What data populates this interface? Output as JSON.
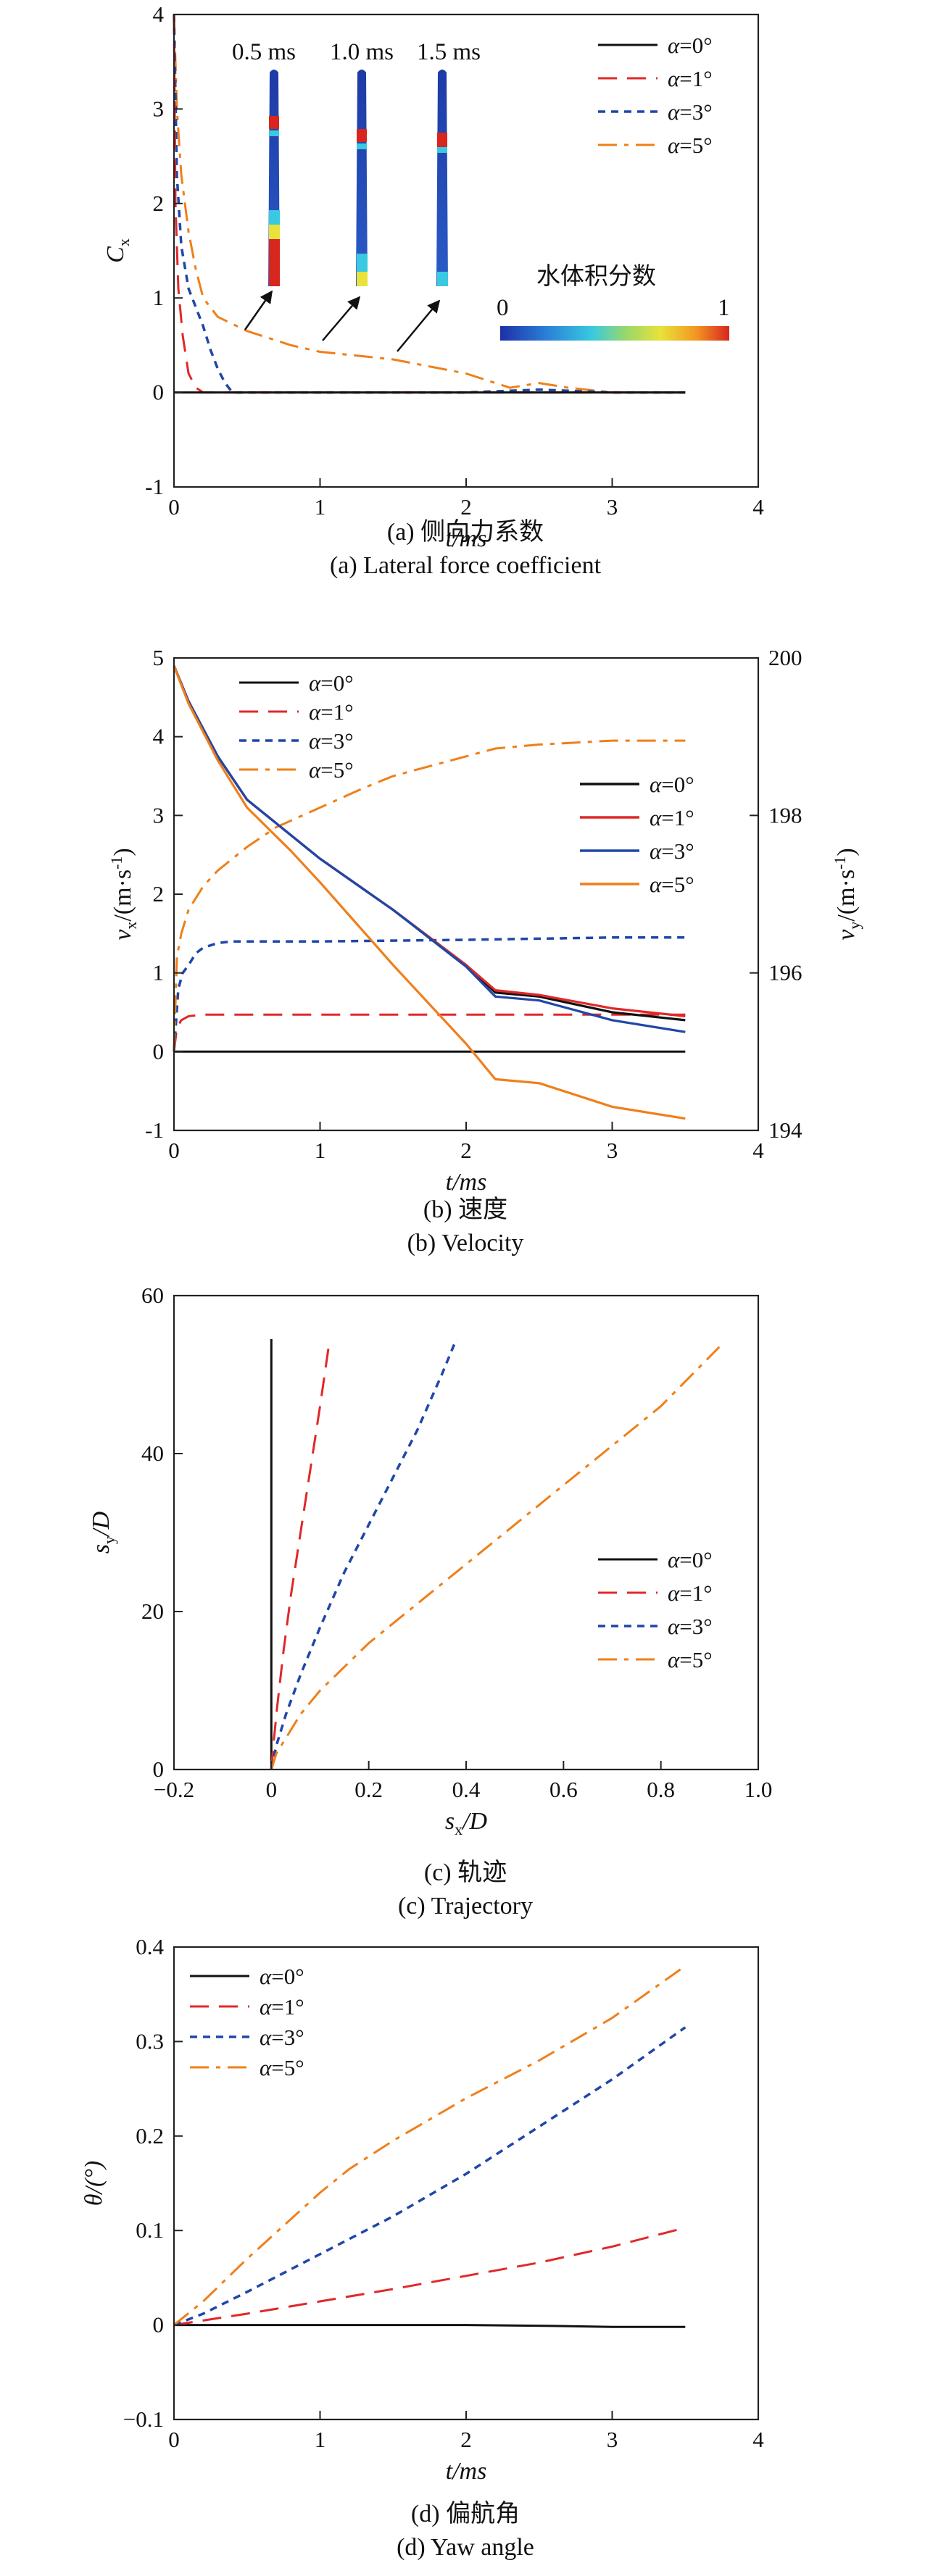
{
  "colors": {
    "a0": "#111111",
    "a1": "#e0282a",
    "a3": "#1f47a8",
    "a5": "#ef7f1a"
  },
  "legend_labels": [
    "α=0°",
    "α=1°",
    "α=3°",
    "α=5°"
  ],
  "chart_data": [
    {
      "type": "line",
      "caption_cn": "(a) 侧向力系数",
      "caption_en": "(a) Lateral force coefficient",
      "xlabel": "t/ms",
      "ylabel": "C",
      "ylabel_sub": "x",
      "xlim": [
        0,
        4
      ],
      "ylim": [
        -1,
        4
      ],
      "xticks": [
        0,
        1,
        2,
        3,
        4
      ],
      "yticks": [
        -1,
        0,
        1,
        2,
        3,
        4
      ],
      "legend_position": "top-right",
      "series": [
        {
          "name": "α=0°",
          "x": [
            0,
            3.5
          ],
          "y": [
            0,
            0
          ]
        },
        {
          "name": "α=1°",
          "x": [
            0,
            0.01,
            0.03,
            0.06,
            0.1,
            0.15,
            0.2,
            0.3,
            0.5,
            1.0,
            2.0,
            3.0,
            3.5
          ],
          "y": [
            4.0,
            2.0,
            1.1,
            0.6,
            0.2,
            0.05,
            0.0,
            0.0,
            0.0,
            0.0,
            0.0,
            0.0,
            0.0
          ]
        },
        {
          "name": "α=3°",
          "x": [
            0,
            0.02,
            0.05,
            0.1,
            0.15,
            0.2,
            0.25,
            0.3,
            0.35,
            0.4,
            0.5,
            1.0,
            2.0,
            2.5,
            3.0,
            3.5
          ],
          "y": [
            4.0,
            2.3,
            1.55,
            1.1,
            0.9,
            0.7,
            0.45,
            0.25,
            0.1,
            0.0,
            0.0,
            0.0,
            0.0,
            0.03,
            0.0,
            0.0
          ]
        },
        {
          "name": "α=5°",
          "x": [
            0,
            0.02,
            0.05,
            0.1,
            0.15,
            0.2,
            0.3,
            0.5,
            0.8,
            1.0,
            1.5,
            2.0,
            2.3,
            2.5,
            2.7,
            3.0,
            3.5
          ],
          "y": [
            4.0,
            3.0,
            2.3,
            1.7,
            1.3,
            1.0,
            0.8,
            0.65,
            0.5,
            0.43,
            0.35,
            0.2,
            0.05,
            0.1,
            0.05,
            0.0,
            0.0
          ]
        }
      ],
      "inset": {
        "times": [
          "0.5 ms",
          "1.0 ms",
          "1.5 ms"
        ],
        "colorbar_title": "水体积分数",
        "colorbar_min": "0",
        "colorbar_max": "1"
      }
    },
    {
      "type": "line",
      "caption_cn": "(b) 速度",
      "caption_en": "(b) Velocity",
      "xlabel": "t/ms",
      "ylabel": "v",
      "ylabel_sub": "x",
      "ylabel_rest": "/(m·s",
      "ylabel_sup": "-1",
      "ylabel_end": ")",
      "ylabel_right": "v",
      "ylabel_right_sub": "y",
      "xlim": [
        0,
        4
      ],
      "ylim": [
        -1,
        5
      ],
      "ylim_right": [
        194,
        200
      ],
      "xticks": [
        0,
        1,
        2,
        3,
        4
      ],
      "yticks": [
        -1,
        0,
        1,
        2,
        3,
        4,
        5
      ],
      "yticks_right": [
        194,
        196,
        198,
        200
      ],
      "series": [
        {
          "name": "α=0°",
          "axis": "left",
          "x": [
            0,
            3.5
          ],
          "y": [
            0,
            0
          ]
        },
        {
          "name": "α=1°",
          "axis": "left",
          "x": [
            0,
            0.02,
            0.05,
            0.1,
            0.2,
            0.5,
            1.0,
            2.0,
            3.0,
            3.5
          ],
          "y": [
            0,
            0.3,
            0.4,
            0.45,
            0.47,
            0.47,
            0.47,
            0.47,
            0.47,
            0.47
          ]
        },
        {
          "name": "α=3°",
          "axis": "left",
          "x": [
            0,
            0.03,
            0.06,
            0.1,
            0.15,
            0.2,
            0.3,
            0.4,
            0.6,
            1.0,
            2.0,
            3.0,
            3.5
          ],
          "y": [
            0,
            0.8,
            1.0,
            1.1,
            1.25,
            1.32,
            1.38,
            1.4,
            1.4,
            1.4,
            1.42,
            1.45,
            1.45
          ]
        },
        {
          "name": "α=5°",
          "axis": "left",
          "x": [
            0,
            0.02,
            0.05,
            0.1,
            0.2,
            0.3,
            0.5,
            0.7,
            1.0,
            1.3,
            1.5,
            1.8,
            2.0,
            2.2,
            2.5,
            3.0,
            3.5
          ],
          "y": [
            0,
            1.2,
            1.5,
            1.8,
            2.1,
            2.3,
            2.6,
            2.85,
            3.1,
            3.35,
            3.5,
            3.65,
            3.75,
            3.85,
            3.9,
            3.95,
            3.95
          ]
        },
        {
          "name": "α=0°",
          "axis": "right",
          "x": [
            0,
            0.1,
            0.3,
            0.5,
            0.8,
            1.0,
            1.5,
            2.0,
            2.2,
            2.5,
            3.0,
            3.5
          ],
          "y": [
            199.9,
            199.45,
            198.75,
            198.2,
            197.75,
            197.45,
            196.8,
            196.1,
            195.75,
            195.7,
            195.5,
            195.4
          ]
        },
        {
          "name": "α=1°",
          "axis": "right",
          "x": [
            0,
            0.1,
            0.3,
            0.5,
            0.8,
            1.0,
            1.5,
            2.0,
            2.2,
            2.5,
            3.0,
            3.5
          ],
          "y": [
            199.9,
            199.45,
            198.75,
            198.2,
            197.75,
            197.45,
            196.8,
            196.1,
            195.78,
            195.72,
            195.55,
            195.45
          ]
        },
        {
          "name": "α=3°",
          "axis": "right",
          "x": [
            0,
            0.1,
            0.3,
            0.5,
            0.8,
            1.0,
            1.5,
            2.0,
            2.2,
            2.5,
            3.0,
            3.5
          ],
          "y": [
            199.9,
            199.45,
            198.75,
            198.2,
            197.75,
            197.45,
            196.8,
            196.08,
            195.7,
            195.65,
            195.4,
            195.25
          ]
        },
        {
          "name": "α=5°",
          "axis": "right",
          "x": [
            0,
            0.1,
            0.3,
            0.5,
            0.8,
            1.0,
            1.5,
            2.0,
            2.2,
            2.5,
            3.0,
            3.5
          ],
          "y": [
            199.9,
            199.42,
            198.7,
            198.1,
            197.55,
            197.15,
            196.1,
            195.1,
            194.65,
            194.6,
            194.3,
            194.15
          ]
        }
      ]
    },
    {
      "type": "line",
      "caption_cn": "(c) 轨迹",
      "caption_en": "(c) Trajectory",
      "xlabel": "s",
      "xlabel_sub": "x",
      "xlabel_rest": "/D",
      "ylabel": "s",
      "ylabel_sub": "y",
      "ylabel_rest": "/D",
      "xlim": [
        -0.2,
        1.0
      ],
      "ylim": [
        0,
        60
      ],
      "xticks": [
        -0.2,
        0,
        0.2,
        0.4,
        0.6,
        0.8,
        1.0
      ],
      "xtick_labels": [
        "−0.2",
        "0",
        "0.2",
        "0.4",
        "0.6",
        "0.8",
        "1.0"
      ],
      "yticks": [
        0,
        20,
        40,
        60
      ],
      "legend_position": "right",
      "series": [
        {
          "name": "α=0°",
          "x": [
            0,
            0
          ],
          "y": [
            0,
            54.5
          ]
        },
        {
          "name": "α=1°",
          "x": [
            0,
            0.004,
            0.012,
            0.025,
            0.04,
            0.06,
            0.08,
            0.1,
            0.12
          ],
          "y": [
            0,
            3,
            8,
            15,
            22,
            30,
            38,
            46,
            54.5
          ]
        },
        {
          "name": "α=3°",
          "x": [
            0,
            0.01,
            0.03,
            0.06,
            0.1,
            0.15,
            0.2,
            0.25,
            0.3,
            0.35,
            0.38
          ],
          "y": [
            0,
            3,
            7,
            12,
            18,
            25,
            31,
            37,
            43,
            50,
            54.5
          ]
        },
        {
          "name": "α=5°",
          "x": [
            0,
            0.01,
            0.03,
            0.06,
            0.1,
            0.15,
            0.2,
            0.3,
            0.4,
            0.5,
            0.6,
            0.7,
            0.8,
            0.92
          ],
          "y": [
            0,
            2,
            4,
            7,
            10,
            13,
            16,
            21,
            26,
            31,
            36,
            41,
            46,
            53.5
          ]
        }
      ]
    },
    {
      "type": "line",
      "caption_cn": "(d) 偏航角",
      "caption_en": "(d) Yaw angle",
      "xlabel": "t/ms",
      "ylabel": "θ/(°)",
      "xlim": [
        0,
        4
      ],
      "ylim": [
        -0.1,
        0.4
      ],
      "xticks": [
        0,
        1,
        2,
        3,
        4
      ],
      "yticks": [
        -0.1,
        0,
        0.1,
        0.2,
        0.3,
        0.4
      ],
      "ytick_labels": [
        "−0.1",
        "0",
        "0.1",
        "0.2",
        "0.3",
        "0.4"
      ],
      "legend_position": "top-left",
      "series": [
        {
          "name": "α=0°",
          "x": [
            0,
            1,
            2,
            2.6,
            3.0,
            3.5
          ],
          "y": [
            0,
            0,
            0,
            -0.001,
            -0.002,
            -0.002
          ]
        },
        {
          "name": "α=1°",
          "x": [
            0,
            0.5,
            1.0,
            1.5,
            2.0,
            2.5,
            3.0,
            3.5
          ],
          "y": [
            0,
            0.012,
            0.025,
            0.038,
            0.052,
            0.066,
            0.083,
            0.103
          ]
        },
        {
          "name": "α=3°",
          "x": [
            0,
            0.2,
            0.5,
            1.0,
            1.5,
            2.0,
            2.5,
            3.0,
            3.5
          ],
          "y": [
            0,
            0.012,
            0.035,
            0.075,
            0.115,
            0.16,
            0.21,
            0.26,
            0.315
          ]
        },
        {
          "name": "α=5°",
          "x": [
            0,
            0.2,
            0.5,
            1.0,
            1.2,
            1.5,
            2.0,
            2.5,
            3.0,
            3.5
          ],
          "y": [
            0,
            0.025,
            0.07,
            0.14,
            0.165,
            0.195,
            0.24,
            0.28,
            0.325,
            0.38
          ]
        }
      ]
    }
  ]
}
